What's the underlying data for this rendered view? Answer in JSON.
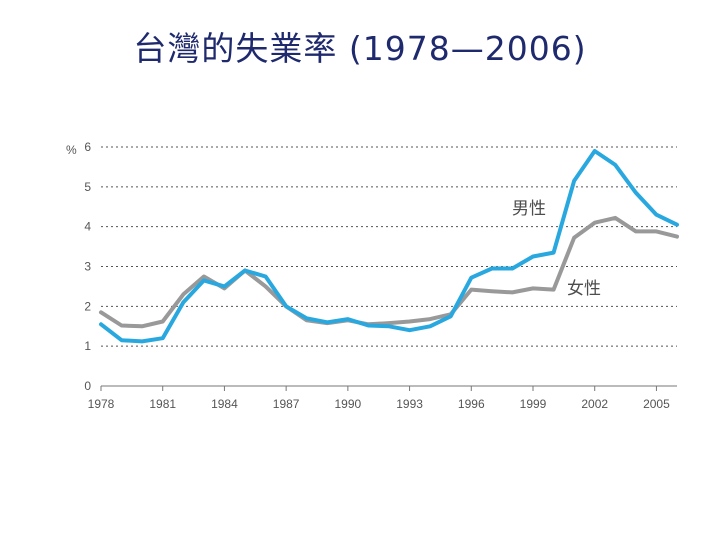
{
  "title": "台灣的失業率 (1978—2006)",
  "chart_data": {
    "type": "line",
    "title": "台灣的失業率 (1978—2006)",
    "y_unit": "%",
    "xlim": [
      1978,
      2006
    ],
    "ylim": [
      0,
      6
    ],
    "y_ticks": [
      0,
      1,
      2,
      3,
      4,
      5,
      6
    ],
    "x_ticks": [
      1978,
      1981,
      1984,
      1987,
      1990,
      1993,
      1996,
      1999,
      2002,
      2005
    ],
    "grid": "horizontal-dotted",
    "x": [
      1978,
      1979,
      1980,
      1981,
      1982,
      1983,
      1984,
      1985,
      1986,
      1987,
      1988,
      1989,
      1990,
      1991,
      1992,
      1993,
      1994,
      1995,
      1996,
      1997,
      1998,
      1999,
      2000,
      2001,
      2002,
      2003,
      2004,
      2005,
      2006
    ],
    "series": [
      {
        "name": "男性",
        "color": "#29a8e0",
        "values": [
          1.55,
          1.15,
          1.12,
          1.2,
          2.1,
          2.65,
          2.5,
          2.9,
          2.75,
          2.0,
          1.7,
          1.6,
          1.68,
          1.52,
          1.5,
          1.4,
          1.5,
          1.75,
          2.72,
          2.95,
          2.95,
          3.25,
          3.35,
          5.15,
          5.9,
          5.55,
          4.85,
          4.3,
          4.05
        ]
      },
      {
        "name": "女性",
        "color": "#999999",
        "values": [
          1.85,
          1.52,
          1.5,
          1.62,
          2.3,
          2.75,
          2.45,
          2.9,
          2.5,
          2.0,
          1.65,
          1.58,
          1.65,
          1.55,
          1.58,
          1.62,
          1.68,
          1.8,
          2.42,
          2.38,
          2.35,
          2.45,
          2.42,
          3.72,
          4.1,
          4.22,
          3.88,
          3.88,
          3.75
        ]
      }
    ]
  }
}
